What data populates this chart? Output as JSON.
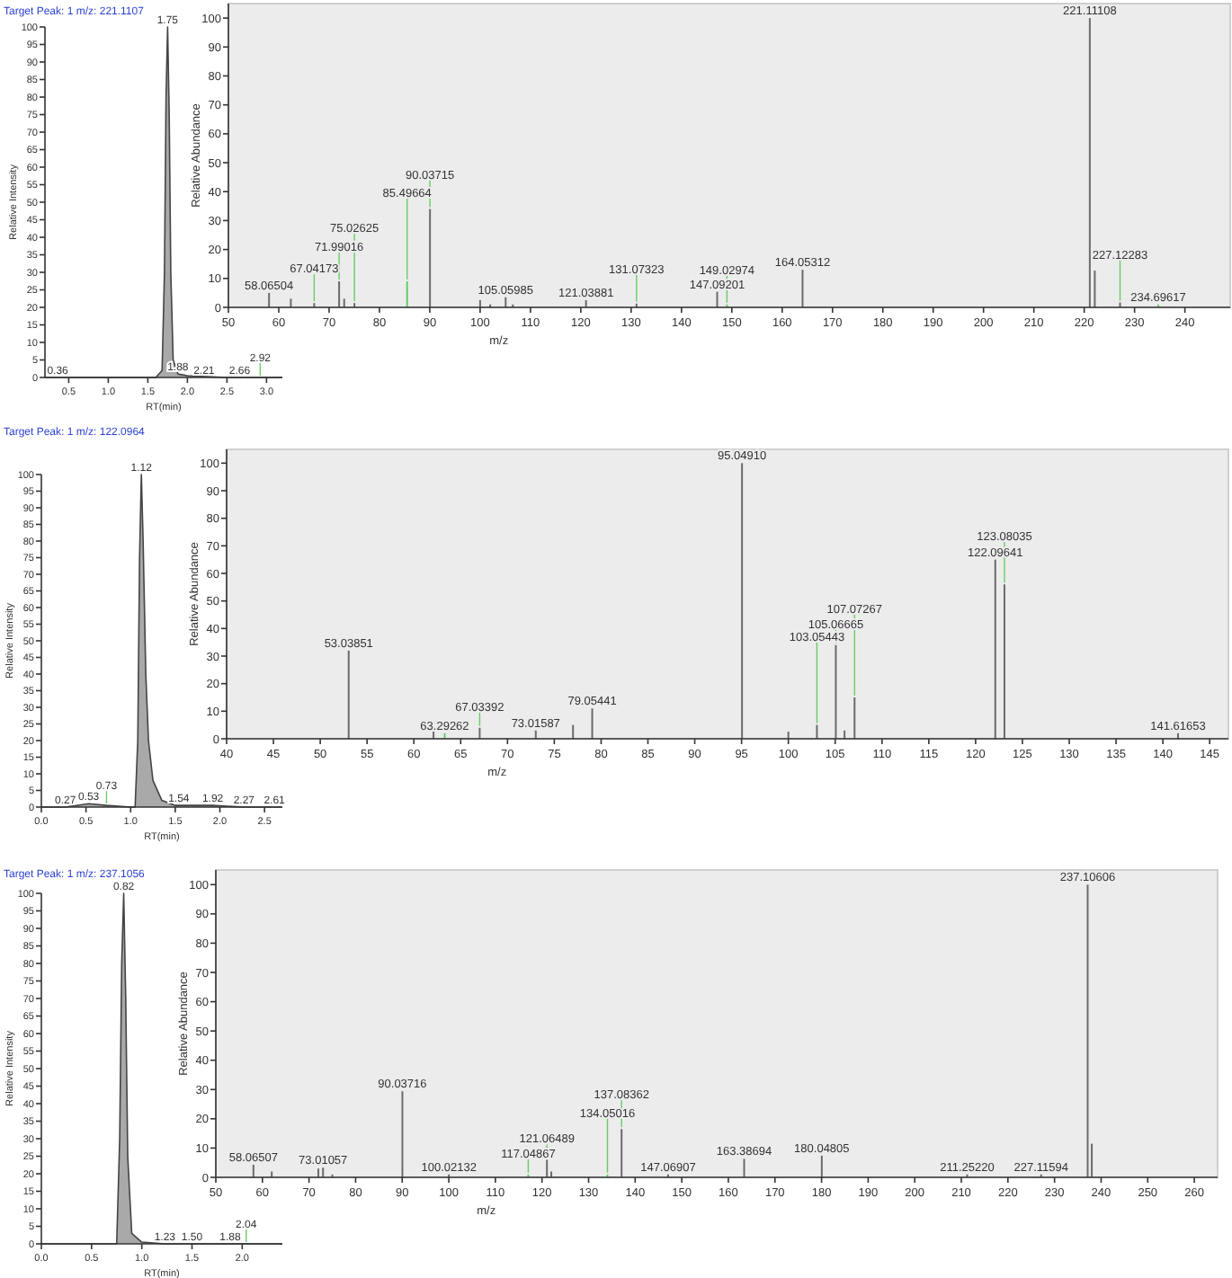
{
  "chart_data": [
    {
      "type": "area",
      "title": "Target Peak: 1 m/z: 221.1107",
      "xlabel": "RT(min)",
      "ylabel": "Relative Intensity",
      "color": "#9a9a9a",
      "x": [
        0.2,
        0.5,
        1.0,
        1.6,
        1.68,
        1.71,
        1.73,
        1.75,
        1.77,
        1.79,
        1.82,
        1.88,
        2.0,
        2.5,
        3.2
      ],
      "values": [
        0,
        0,
        0,
        0,
        2,
        30,
        80,
        100,
        75,
        30,
        5,
        1,
        0.5,
        0,
        0
      ],
      "xlim": [
        0.2,
        3.2
      ],
      "xticks": [
        0.5,
        {
          "value": 1,
          "label": "1.0"
        },
        1.5,
        {
          "value": 2,
          "label": "2.0"
        },
        2.5,
        {
          "value": 3,
          "label": "3.0"
        }
      ],
      "ylim": [
        0,
        100
      ],
      "yticks": [
        0,
        5,
        10,
        15,
        20,
        25,
        30,
        35,
        40,
        45,
        50,
        55,
        60,
        65,
        70,
        75,
        80,
        85,
        90,
        95,
        100
      ],
      "annotations": [
        {
          "text": "0.36",
          "x": 0.36,
          "y": 0
        },
        {
          "text": "1.75",
          "x": 1.75,
          "y": 100
        },
        {
          "text": "1.88",
          "x": 1.88,
          "y": 1
        },
        {
          "text": "2.21",
          "x": 2.21,
          "y": 0
        },
        {
          "text": "2.66",
          "x": 2.66,
          "y": 0
        },
        {
          "text": "2.92",
          "x": 2.92,
          "y": 0
        }
      ]
    },
    {
      "type": "bar",
      "xlabel": "m/z",
      "ylabel": "Relative Abundance",
      "x": [
        58.07,
        62.4,
        67.04,
        71.99,
        73,
        75.03,
        85.5,
        90.04,
        100,
        102,
        105.07,
        106.5,
        121.04,
        131.07,
        147.09,
        149.03,
        164.05,
        221.11,
        222.1,
        227.12,
        234.7
      ],
      "values": [
        5,
        3,
        1.5,
        9,
        3,
        1.5,
        9,
        34,
        2.5,
        1,
        3.5,
        1,
        2.5,
        1.3,
        5.4,
        1,
        13,
        100,
        12.7,
        1.7,
        1
      ],
      "colors": [
        "#6b6b6b",
        "#6b6b6b",
        "#6b6b6b",
        "#6b6b6b",
        "#6b6b6b",
        "#6b6b6b",
        "#66cc66",
        "#6b6b6b",
        "#6b6b6b",
        "#6b6b6b",
        "#6b6b6b",
        "#6b6b6b",
        "#6b6b6b",
        "#6b6b6b",
        "#6b6b6b",
        "#66cc66",
        "#6b6b6b",
        "#6b6b6b",
        "#6b6b6b",
        "#6b6b6b",
        "#66cc66"
      ],
      "xlim": [
        50,
        249
      ],
      "xticks": [
        50,
        60,
        70,
        80,
        90,
        100,
        110,
        120,
        130,
        140,
        150,
        160,
        170,
        180,
        190,
        200,
        210,
        220,
        230,
        240
      ],
      "ylim": [
        0,
        105
      ],
      "yticks": [
        0,
        10,
        20,
        30,
        40,
        50,
        60,
        70,
        80,
        90,
        100
      ],
      "annotations": [
        {
          "text": "58.06504",
          "x": 58.07,
          "y": 5
        },
        {
          "text": "67.04173",
          "x": 67.04,
          "y": 1.5
        },
        {
          "text": "71.99016",
          "x": 71.99,
          "y": 9
        },
        {
          "text": "75.02625",
          "x": 75.03,
          "y": 1.5
        },
        {
          "text": "85.49664",
          "x": 85.5,
          "y": 9
        },
        {
          "text": "90.03715",
          "x": 90.04,
          "y": 34
        },
        {
          "text": "105.05985",
          "x": 105.07,
          "y": 3.5
        },
        {
          "text": "121.03881",
          "x": 121.04,
          "y": 2.5
        },
        {
          "text": "131.07323",
          "x": 131.07,
          "y": 1.3
        },
        {
          "text": "147.09201",
          "x": 147.09,
          "y": 5.4
        },
        {
          "text": "149.02974",
          "x": 149.03,
          "y": 1
        },
        {
          "text": "164.05312",
          "x": 164.05,
          "y": 13
        },
        {
          "text": "221.11108",
          "x": 221.11,
          "y": 100
        },
        {
          "text": "227.12283",
          "x": 227.12,
          "y": 1.7
        },
        {
          "text": "234.69617",
          "x": 234.7,
          "y": 1
        }
      ]
    },
    {
      "type": "area",
      "title": "Target Peak: 1 m/z: 122.0964",
      "xlabel": "RT(min)",
      "ylabel": "Relative Intensity",
      "color": "#9a9a9a",
      "x": [
        0,
        0.27,
        0.53,
        0.73,
        1.0,
        1.05,
        1.08,
        1.1,
        1.12,
        1.14,
        1.17,
        1.2,
        1.25,
        1.35,
        1.5,
        1.54,
        1.92,
        2.27,
        2.61,
        2.7
      ],
      "values": [
        0,
        0,
        1,
        0.5,
        0,
        0,
        20,
        75,
        100,
        80,
        40,
        20,
        8,
        2,
        0.5,
        0.5,
        0.5,
        0,
        0,
        0
      ],
      "xlim": [
        0,
        2.7
      ],
      "xticks": [
        {
          "value": 0,
          "label": "0.0"
        },
        0.5,
        {
          "value": 1,
          "label": "1.0"
        },
        1.5,
        {
          "value": 2,
          "label": "2.0"
        },
        2.5
      ],
      "ylim": [
        0,
        100
      ],
      "yticks": [
        0,
        5,
        10,
        15,
        20,
        25,
        30,
        35,
        40,
        45,
        50,
        55,
        60,
        65,
        70,
        75,
        80,
        85,
        90,
        95,
        100
      ],
      "annotations": [
        {
          "text": "0.27",
          "x": 0.27,
          "y": 0
        },
        {
          "text": "0.53",
          "x": 0.53,
          "y": 1
        },
        {
          "text": "0.73",
          "x": 0.73,
          "y": 0.5
        },
        {
          "text": "1.12",
          "x": 1.12,
          "y": 100
        },
        {
          "text": "1.54",
          "x": 1.54,
          "y": 0.5
        },
        {
          "text": "1.92",
          "x": 1.92,
          "y": 0.5
        },
        {
          "text": "2.27",
          "x": 2.27,
          "y": 0
        },
        {
          "text": "2.61",
          "x": 2.61,
          "y": 0
        }
      ]
    },
    {
      "type": "bar",
      "xlabel": "m/z",
      "ylabel": "Relative Abundance",
      "x": [
        53.04,
        62.1,
        63.29,
        67.03,
        73.02,
        77,
        79.05,
        95.05,
        100,
        103.05,
        105.07,
        106,
        107.07,
        122.1,
        123.08,
        141.62
      ],
      "values": [
        32,
        3,
        2,
        4,
        3,
        5,
        11,
        100,
        2.6,
        5,
        34,
        3,
        15,
        65,
        56,
        2
      ],
      "colors": [
        "#6b6b6b",
        "#6b6b6b",
        "#66cc66",
        "#6b6b6b",
        "#6b6b6b",
        "#6b6b6b",
        "#6b6b6b",
        "#6b6b6b",
        "#6b6b6b",
        "#6b6b6b",
        "#6b6b6b",
        "#6b6b6b",
        "#6b6b6b",
        "#6b6b6b",
        "#6b6b6b",
        "#6b6b6b"
      ],
      "xlim": [
        40,
        147
      ],
      "xticks": [
        40,
        45,
        50,
        55,
        60,
        65,
        70,
        75,
        80,
        85,
        90,
        95,
        100,
        105,
        110,
        115,
        120,
        125,
        130,
        135,
        140,
        145
      ],
      "ylim": [
        0,
        105
      ],
      "yticks": [
        0,
        10,
        20,
        30,
        40,
        50,
        60,
        70,
        80,
        90,
        100
      ],
      "annotations": [
        {
          "text": "53.03851",
          "x": 53.04,
          "y": 32
        },
        {
          "text": "63.29262",
          "x": 63.29,
          "y": 2
        },
        {
          "text": "67.03392",
          "x": 67.03,
          "y": 4
        },
        {
          "text": "73.01587",
          "x": 73.02,
          "y": 3
        },
        {
          "text": "79.05441",
          "x": 79.05,
          "y": 11
        },
        {
          "text": "95.04910",
          "x": 95.05,
          "y": 100
        },
        {
          "text": "103.05443",
          "x": 103.05,
          "y": 5
        },
        {
          "text": "105.06665",
          "x": 105.07,
          "y": 34
        },
        {
          "text": "107.07267",
          "x": 107.07,
          "y": 15
        },
        {
          "text": "122.09641",
          "x": 122.1,
          "y": 65
        },
        {
          "text": "123.08035",
          "x": 123.08,
          "y": 56
        },
        {
          "text": "141.61653",
          "x": 141.62,
          "y": 2
        }
      ]
    },
    {
      "type": "area",
      "title": "Target Peak: 1 m/z: 237.1056",
      "xlabel": "RT(min)",
      "ylabel": "Relative Intensity",
      "color": "#9a9a9a",
      "x": [
        0,
        0.5,
        0.75,
        0.78,
        0.8,
        0.82,
        0.84,
        0.86,
        0.9,
        1.0,
        1.23,
        1.5,
        1.88,
        2.04,
        2.4
      ],
      "values": [
        0,
        0,
        0,
        30,
        80,
        100,
        70,
        25,
        3,
        0.5,
        0,
        0,
        0,
        0,
        0
      ],
      "xlim": [
        0,
        2.4
      ],
      "xticks": [
        {
          "value": 0,
          "label": "0.0"
        },
        0.5,
        {
          "value": 1,
          "label": "1.0"
        },
        1.5,
        {
          "value": 2,
          "label": "2.0"
        }
      ],
      "ylim": [
        0,
        100
      ],
      "yticks": [
        0,
        5,
        10,
        15,
        20,
        25,
        30,
        35,
        40,
        45,
        50,
        55,
        60,
        65,
        70,
        75,
        80,
        85,
        90,
        95,
        100
      ],
      "annotations": [
        {
          "text": "0.82",
          "x": 0.82,
          "y": 100
        },
        {
          "text": "1.23",
          "x": 1.23,
          "y": 0
        },
        {
          "text": "1.50",
          "x": 1.5,
          "y": 0
        },
        {
          "text": "1.88",
          "x": 1.88,
          "y": 0
        },
        {
          "text": "2.04",
          "x": 2.04,
          "y": 0
        }
      ]
    },
    {
      "type": "bar",
      "xlabel": "m/z",
      "ylabel": "Relative Abundance",
      "x": [
        58.07,
        62,
        72,
        73.01,
        75,
        90.04,
        100.02,
        117.05,
        121.06,
        122,
        134.05,
        137.08,
        147.07,
        163.39,
        180.05,
        211.25,
        227.12,
        237.11,
        238
      ],
      "values": [
        4.3,
        2,
        3,
        3.3,
        1,
        29.4,
        1,
        1,
        6,
        2,
        1,
        16.5,
        1,
        6.3,
        7.4,
        1,
        1,
        100,
        11.5
      ],
      "colors": [
        "#6b6b6b",
        "#6b6b6b",
        "#6b6b6b",
        "#6b6b6b",
        "#6b6b6b",
        "#6b6b6b",
        "#6b6b6b",
        "#66cc66",
        "#6b6b6b",
        "#6b6b6b",
        "#66cc66",
        "#6b6b6b",
        "#6b6b6b",
        "#6b6b6b",
        "#6b6b6b",
        "#6b6b6b",
        "#6b6b6b",
        "#6b6b6b",
        "#6b6b6b"
      ],
      "xlim": [
        50,
        265
      ],
      "xticks": [
        50,
        60,
        70,
        80,
        90,
        100,
        110,
        120,
        130,
        140,
        150,
        160,
        170,
        180,
        190,
        200,
        210,
        220,
        230,
        240,
        250,
        260
      ],
      "ylim": [
        0,
        105
      ],
      "yticks": [
        0,
        10,
        20,
        30,
        40,
        50,
        60,
        70,
        80,
        90,
        100
      ],
      "annotations": [
        {
          "text": "58.06507",
          "x": 58.07,
          "y": 4.3
        },
        {
          "text": "73.01057",
          "x": 73.01,
          "y": 3.3
        },
        {
          "text": "90.03716",
          "x": 90.04,
          "y": 29.4
        },
        {
          "text": "100.02132",
          "x": 100.02,
          "y": 1
        },
        {
          "text": "117.04867",
          "x": 117.05,
          "y": 1
        },
        {
          "text": "121.06489",
          "x": 121.06,
          "y": 6
        },
        {
          "text": "134.05016",
          "x": 134.05,
          "y": 1
        },
        {
          "text": "137.08362",
          "x": 137.08,
          "y": 16.5
        },
        {
          "text": "147.06907",
          "x": 147.07,
          "y": 1
        },
        {
          "text": "163.38694",
          "x": 163.39,
          "y": 6.3
        },
        {
          "text": "180.04805",
          "x": 180.05,
          "y": 7.4
        },
        {
          "text": "211.25220",
          "x": 211.25,
          "y": 1
        },
        {
          "text": "227.11594",
          "x": 227.12,
          "y": 1
        },
        {
          "text": "237.10606",
          "x": 237.11,
          "y": 100
        }
      ]
    }
  ]
}
